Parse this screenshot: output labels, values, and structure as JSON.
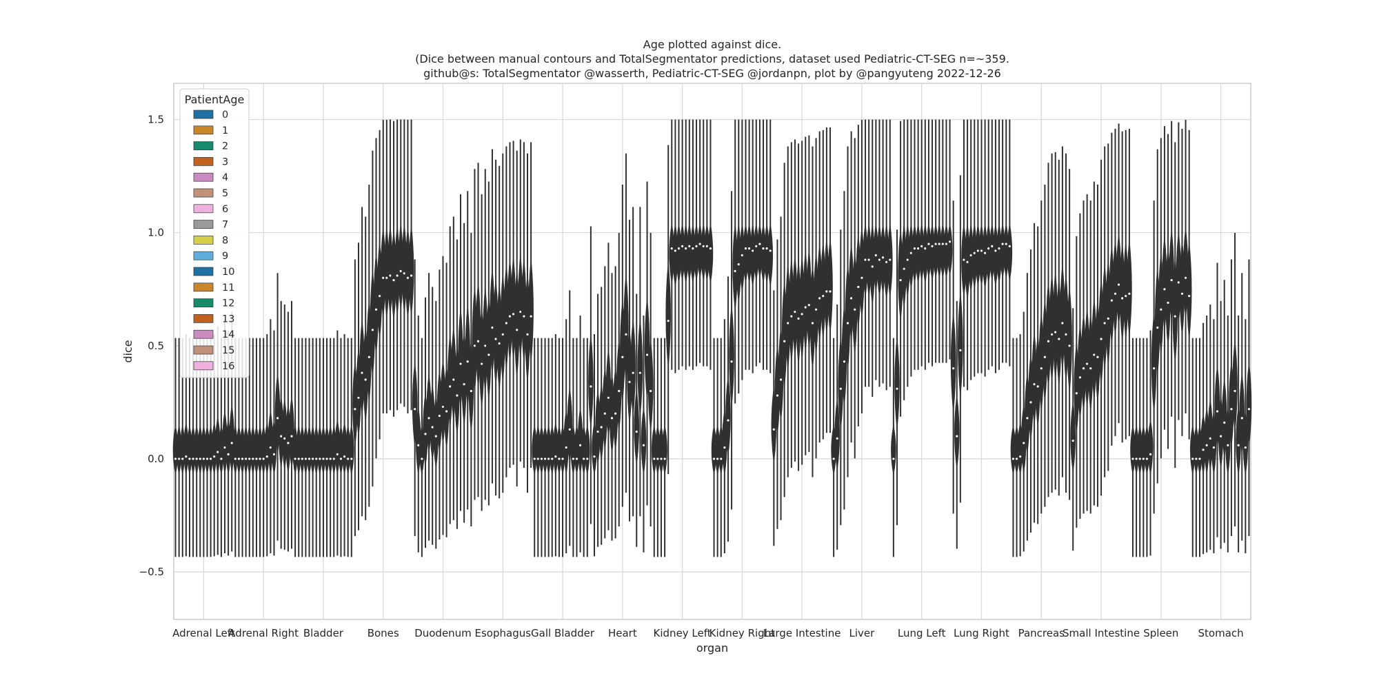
{
  "chart_data": {
    "type": "violin",
    "title_lines": [
      "Age plotted against dice.",
      "(Dice between manual contours and TotalSegmentator predictions, dataset used Pediatric-CT-SEG n=~359.",
      "github@s: TotalSegmentator @wasserth, Pediatric-CT-SEG @jordanpn, plot by @pangyuteng 2022-12-26"
    ],
    "xlabel": "organ",
    "ylabel": "dice",
    "ylim": [
      -0.71,
      1.66
    ],
    "yticks": [
      -0.5,
      0.0,
      0.5,
      1.0,
      1.5
    ],
    "ytick_labels": [
      "−0.5",
      "0.0",
      "0.5",
      "1.0",
      "1.5"
    ],
    "grid": true,
    "legend": {
      "title": "PatientAge",
      "placement": "upper-left",
      "entries": [
        "0",
        "1",
        "2",
        "3",
        "4",
        "5",
        "6",
        "7",
        "8",
        "9",
        "10",
        "11",
        "12",
        "13",
        "14",
        "15",
        "16"
      ]
    },
    "palette": [
      "#1f6fa3",
      "#c9862a",
      "#168a6a",
      "#c0621e",
      "#c98cc0",
      "#c2917a",
      "#f0b0de",
      "#9a9a9a",
      "#d6cf4a",
      "#62aedb"
    ],
    "violin_color": "#303030",
    "median_color": "#ffffff",
    "categories": [
      "Adrenal Left",
      "Adrenal Right",
      "Bladder",
      "Bones",
      "Duodenum",
      "Esophagus",
      "Gall Bladder",
      "Heart",
      "Kidney Left",
      "Kidney Right",
      "Large Intestine",
      "Liver",
      "Lung Left",
      "Lung Right",
      "Pancreas",
      "Small Intestine",
      "Spleen",
      "Stomach"
    ],
    "median_dice_by_age": {
      "Adrenal Left": [
        0.0,
        0.0,
        0.0,
        0.01,
        0.0,
        0.0,
        0.0,
        0.0,
        0.0,
        0.0,
        0.0,
        0.01,
        0.03,
        0.0,
        0.05,
        0.02,
        0.07
      ],
      "Adrenal Right": [
        0.0,
        0.0,
        0.0,
        0.0,
        0.0,
        0.0,
        0.0,
        0.0,
        0.0,
        0.01,
        0.05,
        0.02,
        0.18,
        0.1,
        0.09,
        0.07,
        0.1
      ],
      "Bladder": [
        0.0,
        0.0,
        0.0,
        0.0,
        0.0,
        0.0,
        0.0,
        0.0,
        0.0,
        0.0,
        0.0,
        0.0,
        0.02,
        0.0,
        0.01,
        0.0,
        0.0
      ],
      "Bones": [
        0.22,
        0.27,
        0.38,
        0.35,
        0.45,
        0.57,
        0.66,
        0.72,
        0.8,
        0.8,
        0.81,
        0.79,
        0.81,
        0.83,
        0.82,
        0.8,
        0.81
      ],
      "Duodenum": [
        0.22,
        0.06,
        0.0,
        0.11,
        0.18,
        0.14,
        0.1,
        0.19,
        0.23,
        0.21,
        0.32,
        0.35,
        0.28,
        0.42,
        0.33,
        0.43,
        0.3
      ],
      "Esophagus": [
        0.5,
        0.52,
        0.42,
        0.5,
        0.46,
        0.58,
        0.53,
        0.51,
        0.55,
        0.6,
        0.63,
        0.64,
        0.57,
        0.65,
        0.63,
        0.55,
        0.63
      ],
      "Gall Bladder": [
        0.0,
        0.0,
        0.0,
        0.0,
        0.0,
        0.0,
        0.01,
        0.0,
        0.0,
        0.05,
        0.13,
        0.0,
        0.0,
        0.06,
        0.0,
        0.0,
        0.32
      ],
      "Heart": [
        0.01,
        0.12,
        0.14,
        0.2,
        0.27,
        0.18,
        0.2,
        0.3,
        0.45,
        0.55,
        0.34,
        0.38,
        0.12,
        0.38,
        0.06,
        0.46,
        0.3
      ],
      "Kidney Left": [
        0.0,
        0.0,
        0.0,
        0.0,
        0.61,
        0.93,
        0.92,
        0.93,
        0.94,
        0.93,
        0.94,
        0.93,
        0.94,
        0.95,
        0.94,
        0.94,
        0.93
      ],
      "Kidney Right": [
        0.0,
        0.0,
        0.0,
        0.05,
        0.17,
        0.43,
        0.83,
        0.86,
        0.9,
        0.93,
        0.93,
        0.92,
        0.94,
        0.95,
        0.93,
        0.93,
        0.92
      ],
      "Large Intestine": [
        0.13,
        0.28,
        0.35,
        0.52,
        0.6,
        0.63,
        0.65,
        0.62,
        0.64,
        0.67,
        0.68,
        0.6,
        0.66,
        0.71,
        0.72,
        0.74,
        0.74
      ],
      "Liver": [
        0.0,
        0.09,
        0.31,
        0.43,
        0.6,
        0.71,
        0.66,
        0.76,
        0.8,
        0.88,
        0.88,
        0.85,
        0.9,
        0.88,
        0.89,
        0.87,
        0.88
      ],
      "Lung Left": [
        0.0,
        0.31,
        0.79,
        0.84,
        0.88,
        0.91,
        0.93,
        0.93,
        0.94,
        0.93,
        0.95,
        0.94,
        0.95,
        0.95,
        0.95,
        0.95,
        0.96
      ],
      "Lung Right": [
        0.4,
        0.1,
        0.48,
        0.88,
        0.87,
        0.9,
        0.91,
        0.92,
        0.92,
        0.91,
        0.93,
        0.94,
        0.92,
        0.93,
        0.95,
        0.95,
        0.94
      ],
      "Pancreas": [
        0.0,
        0.0,
        0.01,
        0.07,
        0.18,
        0.25,
        0.33,
        0.32,
        0.4,
        0.45,
        0.52,
        0.55,
        0.56,
        0.53,
        0.6,
        0.55,
        0.5
      ],
      "Small Intestine": [
        0.08,
        0.29,
        0.36,
        0.4,
        0.42,
        0.4,
        0.46,
        0.45,
        0.53,
        0.6,
        0.62,
        0.7,
        0.73,
        0.77,
        0.71,
        0.72,
        0.73
      ],
      "Spleen": [
        0.0,
        0.0,
        0.0,
        0.0,
        0.0,
        0.02,
        0.4,
        0.58,
        0.66,
        0.75,
        0.69,
        0.79,
        0.63,
        0.78,
        0.73,
        0.8,
        0.72
      ],
      "Stomach": [
        0.0,
        0.0,
        0.0,
        0.04,
        0.06,
        0.09,
        0.05,
        0.21,
        0.1,
        0.16,
        0.06,
        0.22,
        0.3,
        0.06,
        0.18,
        0.05,
        0.22
      ]
    }
  }
}
